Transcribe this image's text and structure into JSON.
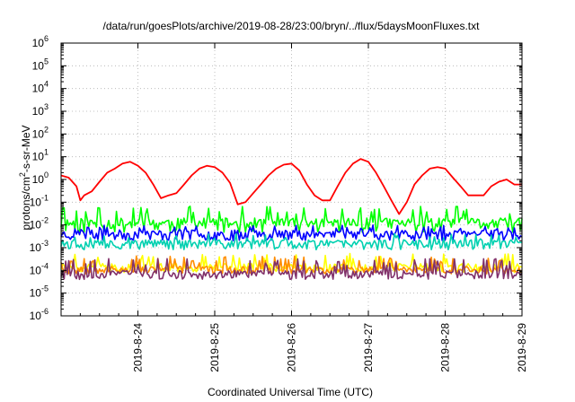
{
  "chart_data": {
    "type": "line",
    "title": "/data/run/goesPlots/archive/2019-08-28/23:00/bryn/../flux/5daysMoonFluxes.txt",
    "xlabel": "Coordinated Universal Time (UTC)",
    "ylabel": {
      "base": "protons/cm",
      "sup": "2",
      "rest": "-s-sr-MeV"
    },
    "yscale": "log",
    "ylim": [
      1e-06,
      1000000.0
    ],
    "xlim_days": [
      0,
      6
    ],
    "grid": true,
    "legend": "none",
    "x_ticks": [
      {
        "day": 1,
        "label": "2019-8-24"
      },
      {
        "day": 2,
        "label": "2019-8-25"
      },
      {
        "day": 3,
        "label": "2019-8-26"
      },
      {
        "day": 4,
        "label": "2019-8-27"
      },
      {
        "day": 5,
        "label": "2019-8-28"
      },
      {
        "day": 6,
        "label": "2019-8-29"
      }
    ],
    "y_ticks": [
      {
        "exp": -6,
        "base": "10",
        "sup": "-6"
      },
      {
        "exp": -5,
        "base": "10",
        "sup": "-5"
      },
      {
        "exp": -4,
        "base": "10",
        "sup": "-4"
      },
      {
        "exp": -3,
        "base": "10",
        "sup": "-3"
      },
      {
        "exp": -2,
        "base": "10",
        "sup": "-2"
      },
      {
        "exp": -1,
        "base": "10",
        "sup": "-1"
      },
      {
        "exp": 0,
        "base": "10",
        "sup": "0"
      },
      {
        "exp": 1,
        "base": "10",
        "sup": "1"
      },
      {
        "exp": 2,
        "base": "10",
        "sup": "2"
      },
      {
        "exp": 3,
        "base": "10",
        "sup": "3"
      },
      {
        "exp": 4,
        "base": "10",
        "sup": "4"
      },
      {
        "exp": 5,
        "base": "10",
        "sup": "5"
      },
      {
        "exp": 6,
        "base": "10",
        "sup": "6"
      }
    ],
    "series": [
      {
        "color": "#ff0000",
        "points": [
          [
            0.0,
            1.5
          ],
          [
            0.1,
            1.2
          ],
          [
            0.2,
            0.5
          ],
          [
            0.25,
            0.12
          ],
          [
            0.3,
            0.2
          ],
          [
            0.4,
            0.3
          ],
          [
            0.5,
            0.8
          ],
          [
            0.6,
            2
          ],
          [
            0.7,
            3
          ],
          [
            0.8,
            5
          ],
          [
            0.9,
            6
          ],
          [
            1.0,
            4
          ],
          [
            1.1,
            2
          ],
          [
            1.2,
            0.6
          ],
          [
            1.3,
            0.15
          ],
          [
            1.4,
            0.2
          ],
          [
            1.5,
            0.25
          ],
          [
            1.6,
            0.6
          ],
          [
            1.7,
            1.5
          ],
          [
            1.8,
            3
          ],
          [
            1.9,
            4
          ],
          [
            2.0,
            3.5
          ],
          [
            2.1,
            2
          ],
          [
            2.2,
            0.7
          ],
          [
            2.3,
            0.08
          ],
          [
            2.4,
            0.1
          ],
          [
            2.5,
            0.25
          ],
          [
            2.6,
            0.6
          ],
          [
            2.7,
            1.5
          ],
          [
            2.8,
            3
          ],
          [
            2.9,
            4.5
          ],
          [
            3.0,
            5
          ],
          [
            3.1,
            2.5
          ],
          [
            3.2,
            0.6
          ],
          [
            3.3,
            0.2
          ],
          [
            3.4,
            0.12
          ],
          [
            3.5,
            0.12
          ],
          [
            3.6,
            0.5
          ],
          [
            3.7,
            2
          ],
          [
            3.8,
            5
          ],
          [
            3.9,
            8
          ],
          [
            4.0,
            6
          ],
          [
            4.1,
            2
          ],
          [
            4.2,
            0.5
          ],
          [
            4.3,
            0.12
          ],
          [
            4.4,
            0.03
          ],
          [
            4.5,
            0.1
          ],
          [
            4.6,
            0.6
          ],
          [
            4.7,
            1.5
          ],
          [
            4.8,
            3
          ],
          [
            4.9,
            3.5
          ],
          [
            5.0,
            3
          ],
          [
            5.1,
            1.2
          ],
          [
            5.2,
            0.5
          ],
          [
            5.3,
            0.2
          ],
          [
            5.4,
            0.2
          ],
          [
            5.5,
            0.2
          ],
          [
            5.6,
            0.5
          ],
          [
            5.7,
            0.8
          ],
          [
            5.8,
            1.0
          ],
          [
            5.9,
            0.6
          ],
          [
            6.0,
            0.6
          ]
        ]
      },
      {
        "color": "#00ff00",
        "base": 0.012,
        "amp": 0.008,
        "spikes": 0.06,
        "seed": 11
      },
      {
        "color": "#0000ff",
        "base": 0.004,
        "amp": 0.002,
        "spikes": 0.009,
        "seed": 23
      },
      {
        "color": "#00d0b0",
        "base": 0.0015,
        "amp": 0.0007,
        "spikes": 0.004,
        "seed": 37
      },
      {
        "color": "#ffff00",
        "base": 0.00014,
        "amp": 6e-05,
        "spikes": 0.0005,
        "seed": 41
      },
      {
        "color": "#ff8c00",
        "base": 0.00011,
        "amp": 4e-05,
        "spikes": 0.0004,
        "seed": 53
      },
      {
        "color": "#80306a",
        "base": 7e-05,
        "amp": 3e-05,
        "spikes": 0.0003,
        "seed": 67
      }
    ]
  }
}
